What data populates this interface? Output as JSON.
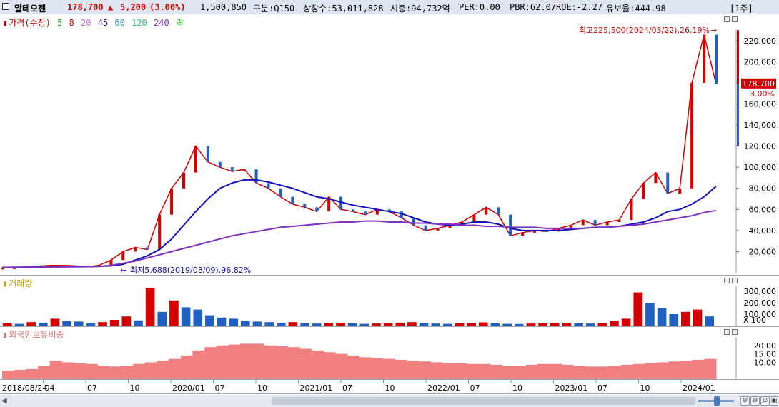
{
  "header": {
    "name": "알테오젠",
    "price": "178,700",
    "arrow": "▲",
    "change": "5,200",
    "change_pct": "(3.00%)",
    "volume": "1,500,850",
    "gubun": "구분:Q150",
    "shares": "상장수:53,011,828",
    "market_cap": "시총:94,732억",
    "per": "PER:0.00",
    "pbr": "PBR:62.07",
    "roe": "ROE:-2.27",
    "float": "유보율:444.98",
    "period": "[1주]"
  },
  "price_panel": {
    "legend": {
      "main": "가격(수정)",
      "ma": [
        "5",
        "8",
        "20",
        "45",
        "60",
        "120",
        "240"
      ],
      "ma_colors": [
        "#00c000",
        "#d40000",
        "#e060e0",
        "#1010c0",
        "#30a0c0",
        "#30c080",
        "#8030c0"
      ],
      "tail": "락"
    },
    "high_note": "최고225,500(2024/03/22),26.19%",
    "low_note": "최저5,688(2019/08/09),96.82%",
    "current_tag": "178,700",
    "current_pct": "3.00%"
  },
  "volume_panel": {
    "legend": "거래량",
    "unit": "X 100"
  },
  "foreign_panel": {
    "legend": "외국인보유비중"
  },
  "chart_data": [
    {
      "type": "line",
      "title": "가격(수정)",
      "x_labels": [
        "2018/08/24",
        "04",
        "07",
        "10",
        "2020/01",
        "07",
        "10",
        "2021/01",
        "07",
        "10",
        "2022/01",
        "07",
        "10",
        "2023/01",
        "07",
        "10",
        "2024/01"
      ],
      "ylim": [
        0,
        230000
      ],
      "yticks": [
        20000,
        40000,
        60000,
        80000,
        100000,
        120000,
        140000,
        160000,
        180000,
        200000,
        220000
      ],
      "ytick_labels": [
        "20,000",
        "40,000",
        "60,000",
        "80,000",
        "100,000",
        "120,000",
        "140,000",
        "160,000",
        "180,000",
        "200,000",
        "220,000"
      ],
      "series": [
        {
          "name": "가격(수정)",
          "color": "#d40000",
          "values": [
            4500,
            4800,
            5500,
            6200,
            7000,
            7000,
            6500,
            5688,
            7000,
            12000,
            20000,
            24000,
            22000,
            55000,
            80000,
            95000,
            120000,
            105000,
            100000,
            96000,
            98000,
            85000,
            80000,
            72000,
            65000,
            62000,
            58000,
            72000,
            60000,
            58000,
            55000,
            60000,
            58000,
            52000,
            45000,
            40000,
            42000,
            45000,
            48000,
            55000,
            62000,
            55000,
            35000,
            38000,
            40000,
            39000,
            42000,
            45000,
            50000,
            45000,
            48000,
            50000,
            70000,
            85000,
            95000,
            75000,
            80000,
            180000,
            225500,
            178700
          ]
        },
        {
          "name": "45",
          "color": "#1010c0",
          "values": [
            5000,
            5200,
            5300,
            5400,
            5500,
            5700,
            5800,
            5900,
            6000,
            6500,
            8000,
            12000,
            16000,
            22000,
            32000,
            45000,
            58000,
            70000,
            80000,
            85000,
            88000,
            88000,
            86000,
            83000,
            80000,
            76000,
            72000,
            70000,
            67000,
            64000,
            62000,
            60000,
            58000,
            56000,
            52000,
            48000,
            46000,
            45000,
            46000,
            48000,
            48000,
            46000,
            42000,
            40000,
            40000,
            40000,
            40000,
            41000,
            42000,
            43000,
            43000,
            44000,
            46000,
            48000,
            52000,
            58000,
            60000,
            65000,
            72000,
            82000
          ]
        },
        {
          "name": "240",
          "color": "#8030c0",
          "values": [
            5000,
            5100,
            5200,
            5300,
            5400,
            5500,
            5600,
            5700,
            6000,
            7000,
            9000,
            11000,
            14000,
            17000,
            20000,
            23000,
            26000,
            29000,
            32000,
            35000,
            37000,
            39000,
            41000,
            43000,
            44000,
            45000,
            46000,
            47000,
            48000,
            48000,
            49000,
            49000,
            48000,
            48000,
            47000,
            47000,
            46000,
            46000,
            45000,
            45000,
            44000,
            44000,
            43000,
            43000,
            43000,
            42000,
            42000,
            42000,
            42000,
            43000,
            43000,
            44000,
            45000,
            46000,
            48000,
            50000,
            52000,
            54000,
            57000,
            59000
          ]
        }
      ]
    },
    {
      "type": "bar",
      "title": "거래량",
      "unit": "X 100",
      "ylim": [
        0,
        350000
      ],
      "yticks": [
        100000,
        200000,
        300000
      ],
      "ytick_labels": [
        "100,000",
        "200,000",
        "300,000"
      ],
      "values": [
        20000,
        15000,
        30000,
        25000,
        60000,
        40000,
        35000,
        20000,
        30000,
        50000,
        80000,
        45000,
        330000,
        120000,
        220000,
        160000,
        140000,
        90000,
        70000,
        60000,
        40000,
        35000,
        30000,
        25000,
        30000,
        20000,
        18000,
        22000,
        25000,
        20000,
        15000,
        18000,
        20000,
        25000,
        30000,
        22000,
        18000,
        15000,
        20000,
        22000,
        28000,
        20000,
        15000,
        14000,
        18000,
        20000,
        22000,
        25000,
        20000,
        18000,
        20000,
        40000,
        60000,
        290000,
        200000,
        150000,
        100000,
        120000,
        140000,
        80000
      ]
    },
    {
      "type": "bar",
      "title": "외국인보유비중",
      "ylim": [
        0,
        25
      ],
      "yticks": [
        10,
        15,
        20
      ],
      "ytick_labels": [
        "10.00",
        "15.00",
        "20.00"
      ],
      "values": [
        5,
        5.5,
        6,
        8,
        11,
        10,
        9.5,
        9,
        8,
        7.5,
        8,
        9,
        10,
        11,
        12,
        14,
        17,
        19,
        20,
        20.5,
        21,
        21,
        20,
        19.5,
        19,
        18,
        17,
        16,
        15,
        14,
        13,
        12.5,
        12,
        11.5,
        11,
        10.5,
        10,
        9.5,
        9.5,
        9,
        9,
        8.5,
        8,
        8,
        8.5,
        9,
        9,
        8.5,
        8,
        7.5,
        7.5,
        8,
        8.5,
        9,
        9.5,
        10,
        10.5,
        11,
        11.5,
        12
      ]
    }
  ]
}
